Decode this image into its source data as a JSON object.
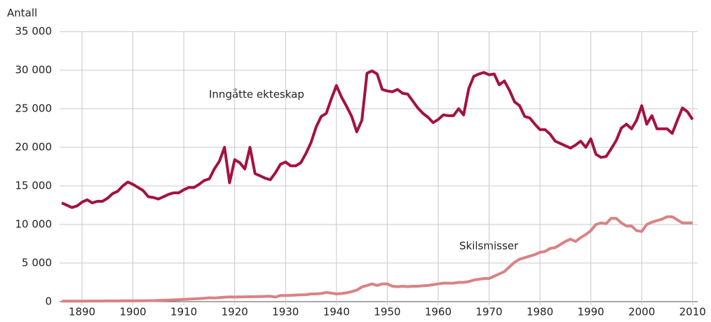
{
  "chart_data": {
    "type": "line",
    "y_axis_label": "Antall",
    "annotations": [
      "Inngåtte ekteskap",
      "Skilsmisser"
    ],
    "x": [
      1886,
      1887,
      1888,
      1889,
      1890,
      1891,
      1892,
      1893,
      1894,
      1895,
      1896,
      1897,
      1898,
      1899,
      1900,
      1901,
      1902,
      1903,
      1904,
      1905,
      1906,
      1907,
      1908,
      1909,
      1910,
      1911,
      1912,
      1913,
      1914,
      1915,
      1916,
      1917,
      1918,
      1919,
      1920,
      1921,
      1922,
      1923,
      1924,
      1925,
      1926,
      1927,
      1928,
      1929,
      1930,
      1931,
      1932,
      1933,
      1934,
      1935,
      1936,
      1937,
      1938,
      1939,
      1940,
      1941,
      1942,
      1943,
      1944,
      1945,
      1946,
      1947,
      1948,
      1949,
      1950,
      1951,
      1952,
      1953,
      1954,
      1955,
      1956,
      1957,
      1958,
      1959,
      1960,
      1961,
      1962,
      1963,
      1964,
      1965,
      1966,
      1967,
      1968,
      1969,
      1970,
      1971,
      1972,
      1973,
      1974,
      1975,
      1976,
      1977,
      1978,
      1979,
      1980,
      1981,
      1982,
      1983,
      1984,
      1985,
      1986,
      1987,
      1988,
      1989,
      1990,
      1991,
      1992,
      1993,
      1994,
      1995,
      1996,
      1997,
      1998,
      1999,
      2000,
      2001,
      2002,
      2003,
      2004,
      2005,
      2006,
      2007,
      2008,
      2009,
      2010
    ],
    "series": [
      {
        "name": "Inngåtte ekteskap",
        "color": "#a3133f",
        "values": [
          12800,
          12500,
          12200,
          12400,
          12900,
          13200,
          12800,
          13000,
          13000,
          13400,
          14000,
          14300,
          15000,
          15500,
          15200,
          14800,
          14400,
          13600,
          13500,
          13300,
          13600,
          13900,
          14100,
          14100,
          14500,
          14800,
          14800,
          15200,
          15700,
          15900,
          17200,
          18200,
          20000,
          15400,
          18400,
          18000,
          17200,
          20000,
          16600,
          16300,
          16000,
          15800,
          16700,
          17800,
          18100,
          17600,
          17600,
          18000,
          19200,
          20600,
          22600,
          24000,
          24400,
          26300,
          28000,
          26500,
          25300,
          24000,
          22000,
          23500,
          29600,
          29900,
          29500,
          27500,
          27300,
          27200,
          27500,
          27000,
          26900,
          26000,
          25100,
          24400,
          23900,
          23200,
          23600,
          24200,
          24100,
          24100,
          25000,
          24200,
          27600,
          29200,
          29500,
          29700,
          29400,
          29500,
          28100,
          28600,
          27400,
          25900,
          25400,
          24000,
          23800,
          23000,
          22300,
          22300,
          21700,
          20800,
          20500,
          20200,
          19900,
          20300,
          20800,
          20000,
          21100,
          19100,
          18700,
          18800,
          19800,
          20900,
          22500,
          23000,
          22400,
          23500,
          25400,
          23000,
          24100,
          22400,
          22400,
          22400,
          21800,
          23500,
          25100,
          24600,
          23600
        ]
      },
      {
        "name": "Skilsmisser",
        "color": "#d98383",
        "values": [
          60,
          60,
          60,
          70,
          70,
          70,
          80,
          80,
          80,
          90,
          90,
          90,
          100,
          100,
          100,
          110,
          120,
          130,
          140,
          160,
          180,
          200,
          230,
          260,
          300,
          330,
          360,
          400,
          450,
          500,
          480,
          520,
          580,
          620,
          600,
          620,
          630,
          640,
          650,
          660,
          680,
          700,
          600,
          800,
          800,
          820,
          850,
          880,
          900,
          1000,
          1000,
          1050,
          1200,
          1100,
          1000,
          1050,
          1150,
          1300,
          1500,
          1900,
          2100,
          2300,
          2100,
          2300,
          2300,
          2000,
          1950,
          2000,
          1950,
          2000,
          2000,
          2050,
          2100,
          2200,
          2300,
          2400,
          2400,
          2400,
          2500,
          2500,
          2600,
          2800,
          2900,
          3000,
          3000,
          3300,
          3600,
          3900,
          4500,
          5100,
          5500,
          5700,
          5900,
          6100,
          6400,
          6500,
          6900,
          7000,
          7400,
          7800,
          8100,
          7800,
          8300,
          8700,
          9200,
          10000,
          10200,
          10100,
          10800,
          10800,
          10200,
          9800,
          9800,
          9200,
          9100,
          10000,
          10300,
          10500,
          10700,
          11000,
          11000,
          10600,
          10200,
          10200,
          10200
        ]
      }
    ],
    "xlim": [
      1886,
      2011
    ],
    "xticks": [
      1890,
      1900,
      1910,
      1920,
      1930,
      1940,
      1950,
      1960,
      1970,
      1980,
      1990,
      2000,
      2010
    ],
    "ylim": [
      0,
      35000
    ],
    "yticks": [
      0,
      {
        "value": 5000,
        "label": "5 000"
      },
      {
        "value": 10000,
        "label": "10 000"
      },
      {
        "value": 15000,
        "label": "15 000"
      },
      {
        "value": 20000,
        "label": "20 000"
      },
      {
        "value": 25000,
        "label": "25 000"
      },
      {
        "value": 30000,
        "label": "30 000"
      },
      {
        "value": 35000,
        "label": "35 000"
      }
    ],
    "grid": true
  }
}
